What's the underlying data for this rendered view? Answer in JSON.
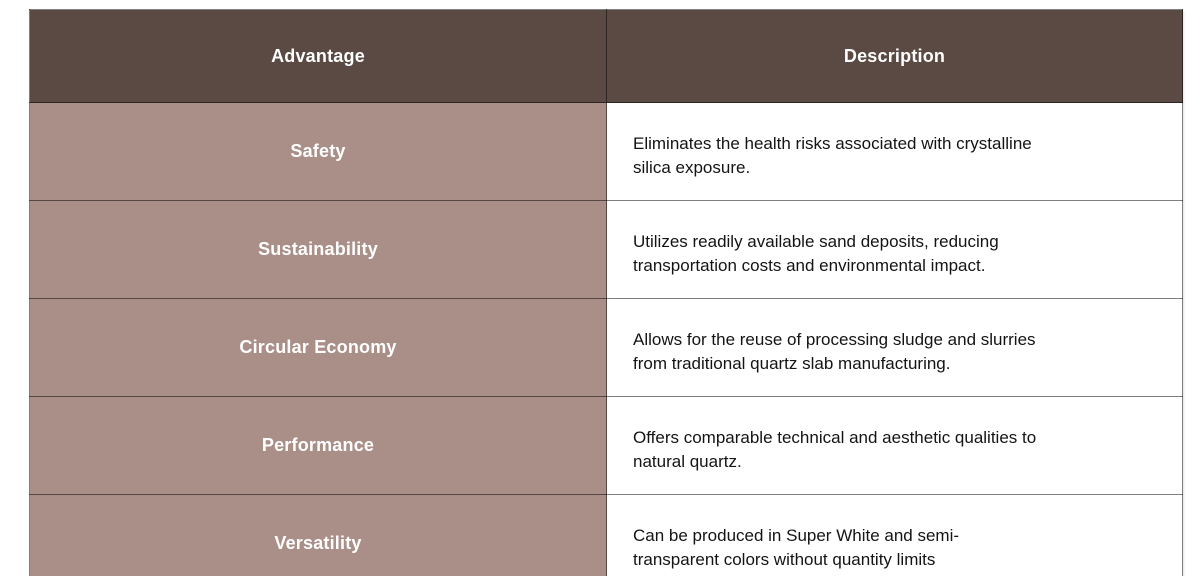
{
  "table": {
    "headers": [
      "Advantage",
      "Description"
    ],
    "rows": [
      {
        "advantage": "Safety",
        "description": "Eliminates the health risks associated with crystalline\nsilica exposure."
      },
      {
        "advantage": "Sustainability",
        "description": "Utilizes readily available sand deposits, reducing\ntransportation costs and environmental impact."
      },
      {
        "advantage": "Circular Economy",
        "description": "Allows for the reuse of processing sludge and slurries\nfrom traditional quartz slab manufacturing."
      },
      {
        "advantage": "Performance",
        "description": "Offers comparable technical and aesthetic qualities to\nnatural quartz."
      },
      {
        "advantage": "Versatility",
        "description": "Can be produced in Super White and semi-\ntransparent colors without quantity limits"
      }
    ],
    "colors": {
      "page_bg": "#ffffff",
      "header_bg": "#5a4a43",
      "header_text": "#ffffff",
      "advantage_bg": "#aa8f88",
      "advantage_text": "#ffffff",
      "description_bg": "#ffffff",
      "description_text": "#141414"
    }
  }
}
